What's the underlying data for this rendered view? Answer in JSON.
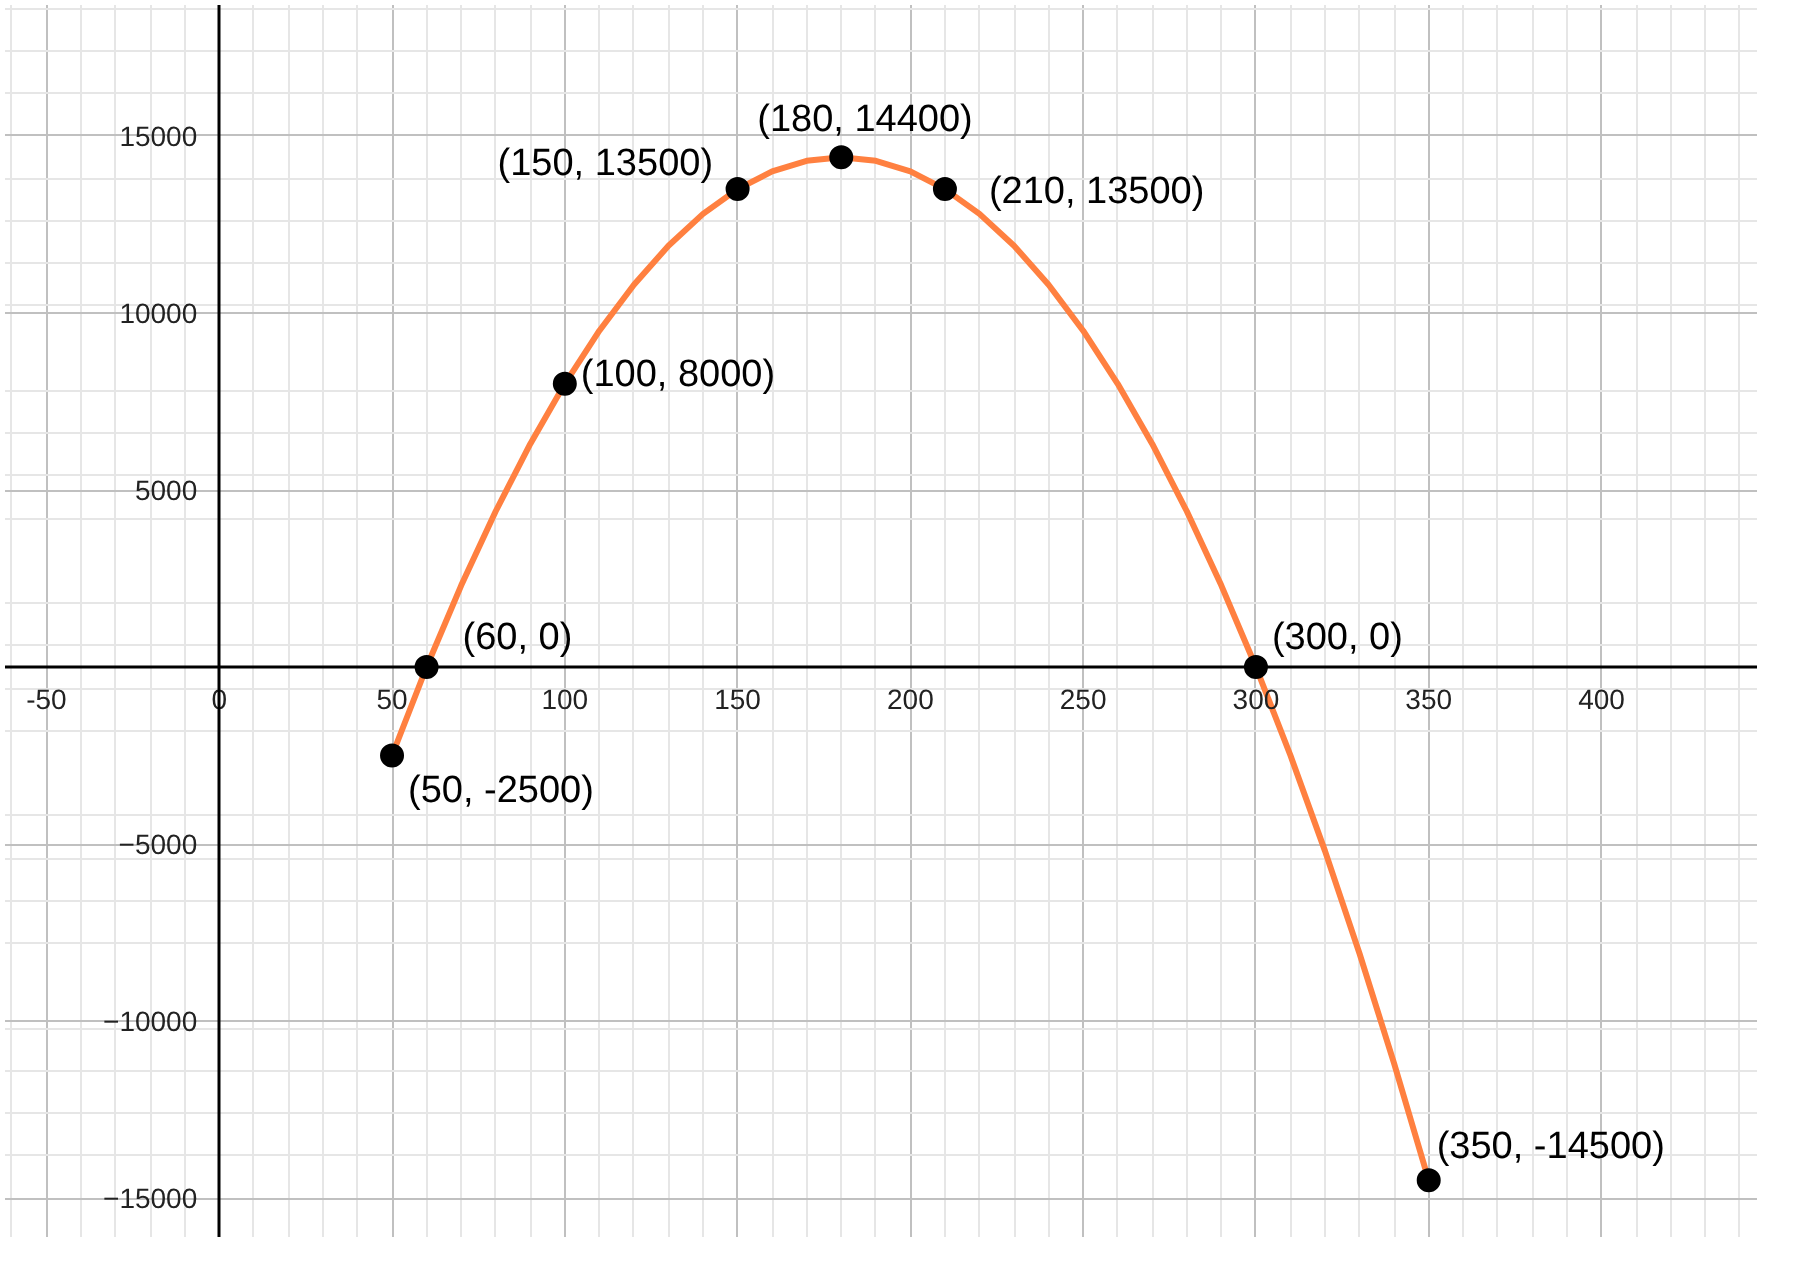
{
  "chart_data": {
    "type": "line",
    "xlim": [
      -62,
      445
    ],
    "ylim": [
      -16100,
      18700
    ],
    "xticks": [
      {
        "value": -50,
        "label": "-50"
      },
      0,
      50,
      100,
      150,
      200,
      250,
      300,
      350,
      400
    ],
    "yticks": [
      {
        "value": -15000,
        "label": "−15000"
      },
      {
        "value": -10000,
        "label": "−10000"
      },
      {
        "value": -5000,
        "label": "−5000"
      },
      5000,
      10000,
      15000
    ],
    "grid": true,
    "series": [
      {
        "color": "#ff8040",
        "x": [
          50,
          60,
          70,
          80,
          90,
          100,
          110,
          120,
          130,
          140,
          150,
          160,
          170,
          180,
          190,
          200,
          210,
          220,
          230,
          240,
          250,
          260,
          270,
          280,
          290,
          300,
          310,
          320,
          330,
          340,
          350
        ],
        "values": [
          -2500,
          0,
          2300,
          4400,
          6300,
          8000,
          9500,
          10800,
          11900,
          12800,
          13500,
          14000,
          14300,
          14400,
          14300,
          14000,
          13500,
          12800,
          11900,
          10800,
          9500,
          8000,
          6300,
          4400,
          2300,
          0,
          -2500,
          -5200,
          -8100,
          -11200,
          -14500
        ]
      },
      {
        "type": "scatter",
        "color": "#000000",
        "marker": "circle",
        "x": [
          50,
          60,
          100,
          150,
          180,
          210,
          300,
          350
        ],
        "values": [
          -2500,
          0,
          8000,
          13500,
          14400,
          13500,
          0,
          -14500
        ],
        "value_labels": [
          "(50, -2500)",
          "(60, 0)",
          "(100, 8000)",
          "(150, 13500)",
          "(180, 14400)",
          "(210, 13500)",
          "(300, 0)",
          "(350, -14500)"
        ]
      }
    ]
  }
}
